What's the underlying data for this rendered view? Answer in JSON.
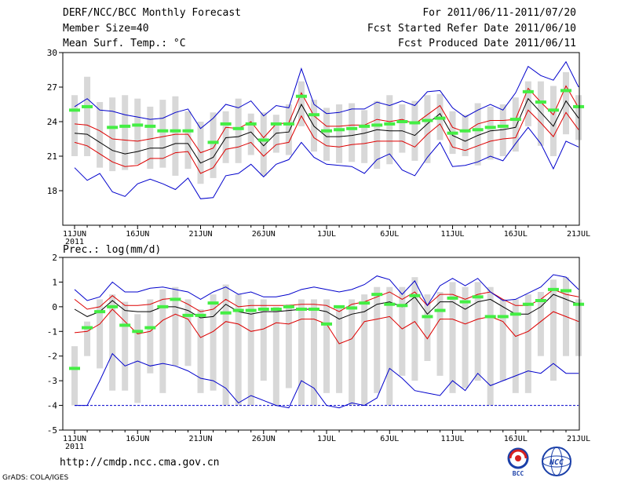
{
  "header": {
    "title": "DERF/NCC/BCC Monthly Forecast",
    "member_size": "Member Size=40",
    "variable": "Mean Surf. Temp.: °C",
    "fcst_period": "For 2011/06/11-2011/07/20",
    "fcst_started": "Fcst Started Refer Date 2011/06/10",
    "fcst_produced": "Fcst Produced Date 2011/06/11"
  },
  "footer": {
    "url": "http://cmdp.ncc.cma.gov.cn",
    "credit": "GrADS: COLA/IGES",
    "logo_bcc": "BCC",
    "logo_ncc": "NCC"
  },
  "colors": {
    "ensemble_mean": "#000000",
    "std_band": "#dd0000",
    "envelope": "#0000cc",
    "observed": "#44ee44",
    "spread_bar": "#d8d8d8"
  },
  "chart_data": [
    {
      "type": "line",
      "title": "Mean Surf. Temp.: °C",
      "x_tick_labels": [
        "11JUN",
        "16JUN",
        "21JUN",
        "26JUN",
        "1JUL",
        "6JUL",
        "11JUL",
        "16JUL",
        "21JUL"
      ],
      "x_year_label": "2011",
      "x_range_days": [
        0,
        39
      ],
      "ylim": [
        15,
        30
      ],
      "y_ticks": [
        18,
        21,
        24,
        27,
        30
      ],
      "series": [
        {
          "name": "ensemble_mean",
          "values": [
            23.0,
            22.9,
            22.2,
            21.5,
            21.2,
            21.4,
            21.7,
            21.7,
            22.1,
            22.1,
            20.4,
            20.9,
            22.6,
            22.7,
            23.1,
            21.9,
            23.0,
            23.1,
            25.5,
            23.6,
            22.7,
            22.7,
            22.8,
            23.0,
            23.3,
            23.2,
            23.2,
            22.8,
            23.8,
            24.7,
            22.8,
            22.3,
            22.8,
            23.2,
            23.3,
            23.5,
            26.0,
            24.8,
            23.6,
            25.8,
            24.3
          ]
        },
        {
          "name": "std_upper",
          "values": [
            23.8,
            23.7,
            23.2,
            22.5,
            22.4,
            22.3,
            22.5,
            22.7,
            22.9,
            22.9,
            21.3,
            21.7,
            23.5,
            23.4,
            24.0,
            22.6,
            23.8,
            23.9,
            26.5,
            24.5,
            23.6,
            23.6,
            23.7,
            23.7,
            24.2,
            24.0,
            24.2,
            23.8,
            24.6,
            25.4,
            23.5,
            23.1,
            23.8,
            24.1,
            24.1,
            24.2,
            26.9,
            25.7,
            24.6,
            27.1,
            25.2
          ]
        },
        {
          "name": "std_lower",
          "values": [
            22.2,
            21.9,
            21.2,
            20.5,
            20.1,
            20.2,
            20.8,
            20.8,
            21.3,
            21.4,
            19.5,
            20.0,
            21.6,
            21.8,
            22.2,
            21.0,
            22.0,
            22.2,
            24.5,
            22.6,
            21.9,
            21.8,
            22.0,
            22.1,
            22.3,
            22.3,
            22.3,
            21.8,
            22.9,
            23.8,
            21.8,
            21.5,
            21.9,
            22.3,
            22.5,
            22.6,
            25.0,
            23.9,
            22.7,
            24.8,
            23.3
          ]
        },
        {
          "name": "max_envelope",
          "values": [
            25.3,
            26.0,
            25.0,
            24.9,
            24.6,
            24.4,
            24.2,
            24.3,
            24.8,
            25.1,
            23.4,
            24.3,
            25.5,
            25.2,
            25.8,
            24.5,
            25.4,
            25.2,
            28.6,
            25.5,
            24.7,
            24.8,
            25.1,
            25.1,
            25.7,
            25.4,
            25.8,
            25.4,
            26.6,
            26.7,
            25.2,
            24.4,
            25.0,
            25.5,
            25.0,
            26.5,
            28.8,
            28.0,
            27.6,
            29.2,
            27.0
          ]
        },
        {
          "name": "min_envelope",
          "values": [
            20.0,
            18.9,
            19.5,
            17.9,
            17.5,
            18.6,
            19.0,
            18.6,
            18.1,
            19.1,
            17.3,
            17.4,
            19.3,
            19.5,
            20.3,
            19.2,
            20.3,
            20.7,
            22.2,
            20.9,
            20.3,
            20.2,
            20.1,
            19.5,
            20.7,
            21.2,
            19.8,
            19.3,
            20.9,
            22.2,
            20.1,
            20.2,
            20.5,
            21.0,
            20.6,
            22.1,
            23.5,
            22.1,
            19.9,
            22.3,
            21.8
          ]
        },
        {
          "name": "observed",
          "values": [
            25.0,
            25.3,
            null,
            23.5,
            23.6,
            23.7,
            23.6,
            23.2,
            23.2,
            23.2,
            null,
            22.2,
            23.8,
            23.4,
            23.8,
            22.4,
            23.8,
            23.8,
            26.2,
            24.6,
            23.2,
            23.3,
            23.4,
            23.6,
            23.7,
            23.8,
            24.0,
            23.9,
            24.1,
            24.3,
            23.0,
            23.2,
            23.3,
            23.5,
            23.6,
            24.2,
            26.6,
            25.7,
            25.0,
            26.7,
            25.3
          ]
        }
      ],
      "spread_bars": {
        "top": [
          26.3,
          27.9,
          25.7,
          26.1,
          26.3,
          26.0,
          25.3,
          25.9,
          26.2,
          24.9,
          24.0,
          24.8,
          24.9,
          26.0,
          24.7,
          24.8,
          24.6,
          25.5,
          27.5,
          25.9,
          25.2,
          25.5,
          25.6,
          25.0,
          25.8,
          26.3,
          25.5,
          25.8,
          26.3,
          26.4,
          24.9,
          24.6,
          25.6,
          25.3,
          25.5,
          26.1,
          27.5,
          27.5,
          27.1,
          28.3,
          26.3
        ],
        "bottom": [
          21.0,
          21.0,
          20.0,
          19.7,
          19.8,
          20.3,
          19.9,
          20.0,
          19.3,
          19.9,
          18.6,
          19.1,
          20.4,
          20.4,
          21.1,
          19.3,
          21.3,
          21.1,
          23.6,
          21.4,
          20.6,
          20.4,
          20.5,
          20.4,
          19.9,
          20.3,
          21.3,
          20.6,
          20.4,
          22.4,
          21.2,
          21.0,
          20.2,
          20.7,
          21.0,
          21.4,
          23.6,
          21.9,
          21.0,
          22.9,
          22.4
        ]
      }
    },
    {
      "type": "line",
      "title": "Prec.: log(mm/d)",
      "x_tick_labels": [
        "11JUN",
        "16JUN",
        "21JUN",
        "26JUN",
        "1JUL",
        "6JUL",
        "11JUL",
        "16JUL",
        "21JUL"
      ],
      "x_year_label": "2011",
      "x_range_days": [
        0,
        39
      ],
      "ylim": [
        -5,
        2
      ],
      "y_ticks": [
        -5,
        -4,
        -3,
        -2,
        -1,
        0,
        1,
        2
      ],
      "series": [
        {
          "name": "ensemble_mean",
          "values": [
            -0.1,
            -0.4,
            -0.2,
            0.25,
            -0.15,
            -0.2,
            -0.2,
            0.0,
            0.0,
            -0.15,
            -0.45,
            -0.4,
            0.1,
            -0.2,
            -0.3,
            -0.2,
            -0.2,
            -0.15,
            -0.1,
            -0.1,
            -0.2,
            -0.5,
            -0.3,
            -0.2,
            0.1,
            0.2,
            0.0,
            0.4,
            -0.3,
            0.2,
            0.2,
            -0.1,
            0.2,
            0.3,
            0.0,
            -0.3,
            -0.3,
            0.0,
            0.5,
            0.3,
            0.1
          ]
        },
        {
          "name": "std_upper",
          "values": [
            0.3,
            -0.1,
            0.0,
            0.45,
            0.05,
            0.05,
            0.1,
            0.3,
            0.35,
            0.1,
            -0.2,
            -0.1,
            0.3,
            0.0,
            0.05,
            0.05,
            0.05,
            0.05,
            0.1,
            0.1,
            0.05,
            -0.2,
            0.1,
            0.2,
            0.4,
            0.6,
            0.3,
            0.6,
            0.05,
            0.5,
            0.5,
            0.3,
            0.5,
            0.6,
            0.3,
            0.05,
            0.05,
            0.3,
            0.7,
            0.5,
            0.4
          ]
        },
        {
          "name": "std_lower",
          "values": [
            -1.05,
            -1.0,
            -0.7,
            -0.1,
            -0.6,
            -1.1,
            -1.0,
            -0.55,
            -0.3,
            -0.5,
            -1.25,
            -1.0,
            -0.6,
            -0.7,
            -1.0,
            -0.9,
            -0.65,
            -0.7,
            -0.5,
            -0.5,
            -0.7,
            -1.5,
            -1.3,
            -0.6,
            -0.5,
            -0.4,
            -0.9,
            -0.6,
            -1.3,
            -0.5,
            -0.5,
            -0.7,
            -0.5,
            -0.4,
            -0.6,
            -1.2,
            -1.0,
            -0.6,
            -0.2,
            -0.4,
            -0.6
          ]
        },
        {
          "name": "max_envelope",
          "values": [
            0.7,
            0.25,
            0.4,
            1.0,
            0.6,
            0.6,
            0.75,
            0.8,
            0.7,
            0.6,
            0.3,
            0.6,
            0.8,
            0.5,
            0.6,
            0.4,
            0.4,
            0.5,
            0.7,
            0.8,
            0.7,
            0.6,
            0.7,
            0.9,
            1.25,
            1.1,
            0.5,
            1.05,
            0.05,
            0.85,
            1.15,
            0.85,
            1.15,
            0.6,
            0.25,
            0.3,
            0.55,
            0.8,
            1.3,
            1.2,
            0.7
          ]
        },
        {
          "name": "min_envelope",
          "values": [
            -4.0,
            -4.0,
            -3.0,
            -1.9,
            -2.4,
            -2.2,
            -2.4,
            -2.3,
            -2.4,
            -2.6,
            -2.9,
            -3.0,
            -3.3,
            -3.9,
            -3.6,
            -3.8,
            -4.0,
            -4.1,
            -3.0,
            -3.3,
            -4.0,
            -4.1,
            -3.9,
            -4.0,
            -3.7,
            -2.5,
            -2.9,
            -3.4,
            -3.5,
            -3.6,
            -3.0,
            -3.4,
            -2.7,
            -3.2,
            -3.0,
            -2.8,
            -2.6,
            -2.7,
            -2.3,
            -2.7,
            -2.7
          ]
        },
        {
          "name": "observed",
          "values": [
            -2.5,
            -0.85,
            -0.2,
            0.0,
            -0.75,
            -1.0,
            -0.85,
            0.0,
            0.3,
            -0.35,
            -0.35,
            0.15,
            -0.25,
            -0.15,
            -0.15,
            -0.1,
            -0.1,
            0.0,
            -0.1,
            -0.1,
            -0.7,
            0.0,
            -0.05,
            0.15,
            0.5,
            0.1,
            0.05,
            0.45,
            -0.4,
            -0.15,
            0.35,
            0.2,
            0.4,
            -0.4,
            -0.4,
            -0.3,
            0.1,
            0.25,
            0.7,
            0.65,
            0.1
          ]
        },
        {
          "name": "zero_floor",
          "values": [
            -4,
            -4,
            -4,
            -4,
            -4,
            -4,
            -4,
            -4,
            -4,
            -4,
            -4,
            -4,
            -4,
            -4,
            -4,
            -4,
            -4,
            -4,
            -4,
            -4,
            -4,
            -4,
            -4,
            -4,
            -4,
            -4,
            -4,
            -4,
            -4,
            -4,
            -4,
            -4,
            -4,
            -4,
            -4,
            -4,
            -4,
            -4,
            -4,
            -4,
            -4
          ]
        }
      ],
      "spread_bars": {
        "top": [
          -1.6,
          -0.6,
          0.3,
          0.5,
          0.2,
          -0.3,
          0.3,
          0.7,
          0.8,
          0.3,
          -0.1,
          0.5,
          0.9,
          0.5,
          0.3,
          0.3,
          0.0,
          0.1,
          0.3,
          0.3,
          0.3,
          0.0,
          0.3,
          0.5,
          0.8,
          0.8,
          0.8,
          1.2,
          0.5,
          0.6,
          1.0,
          0.8,
          1.0,
          0.8,
          0.3,
          0.3,
          0.5,
          0.6,
          1.1,
          1.2,
          0.3
        ],
        "bottom": [
          -4.0,
          -2.0,
          -2.5,
          -3.4,
          -3.4,
          -3.9,
          -2.7,
          -3.5,
          -2.4,
          -2.4,
          -3.5,
          -3.4,
          -4.0,
          -4.0,
          -4.0,
          -3.0,
          -4.0,
          -3.3,
          -4.0,
          -4.0,
          -3.5,
          -3.5,
          -4.0,
          -4.0,
          -3.5,
          -4.0,
          -2.8,
          -3.0,
          -2.2,
          -2.8,
          -3.5,
          -3.3,
          -3.0,
          -4.0,
          -3.0,
          -3.5,
          -3.5,
          -2.0,
          -3.0,
          -2.0,
          -2.0
        ]
      }
    }
  ]
}
